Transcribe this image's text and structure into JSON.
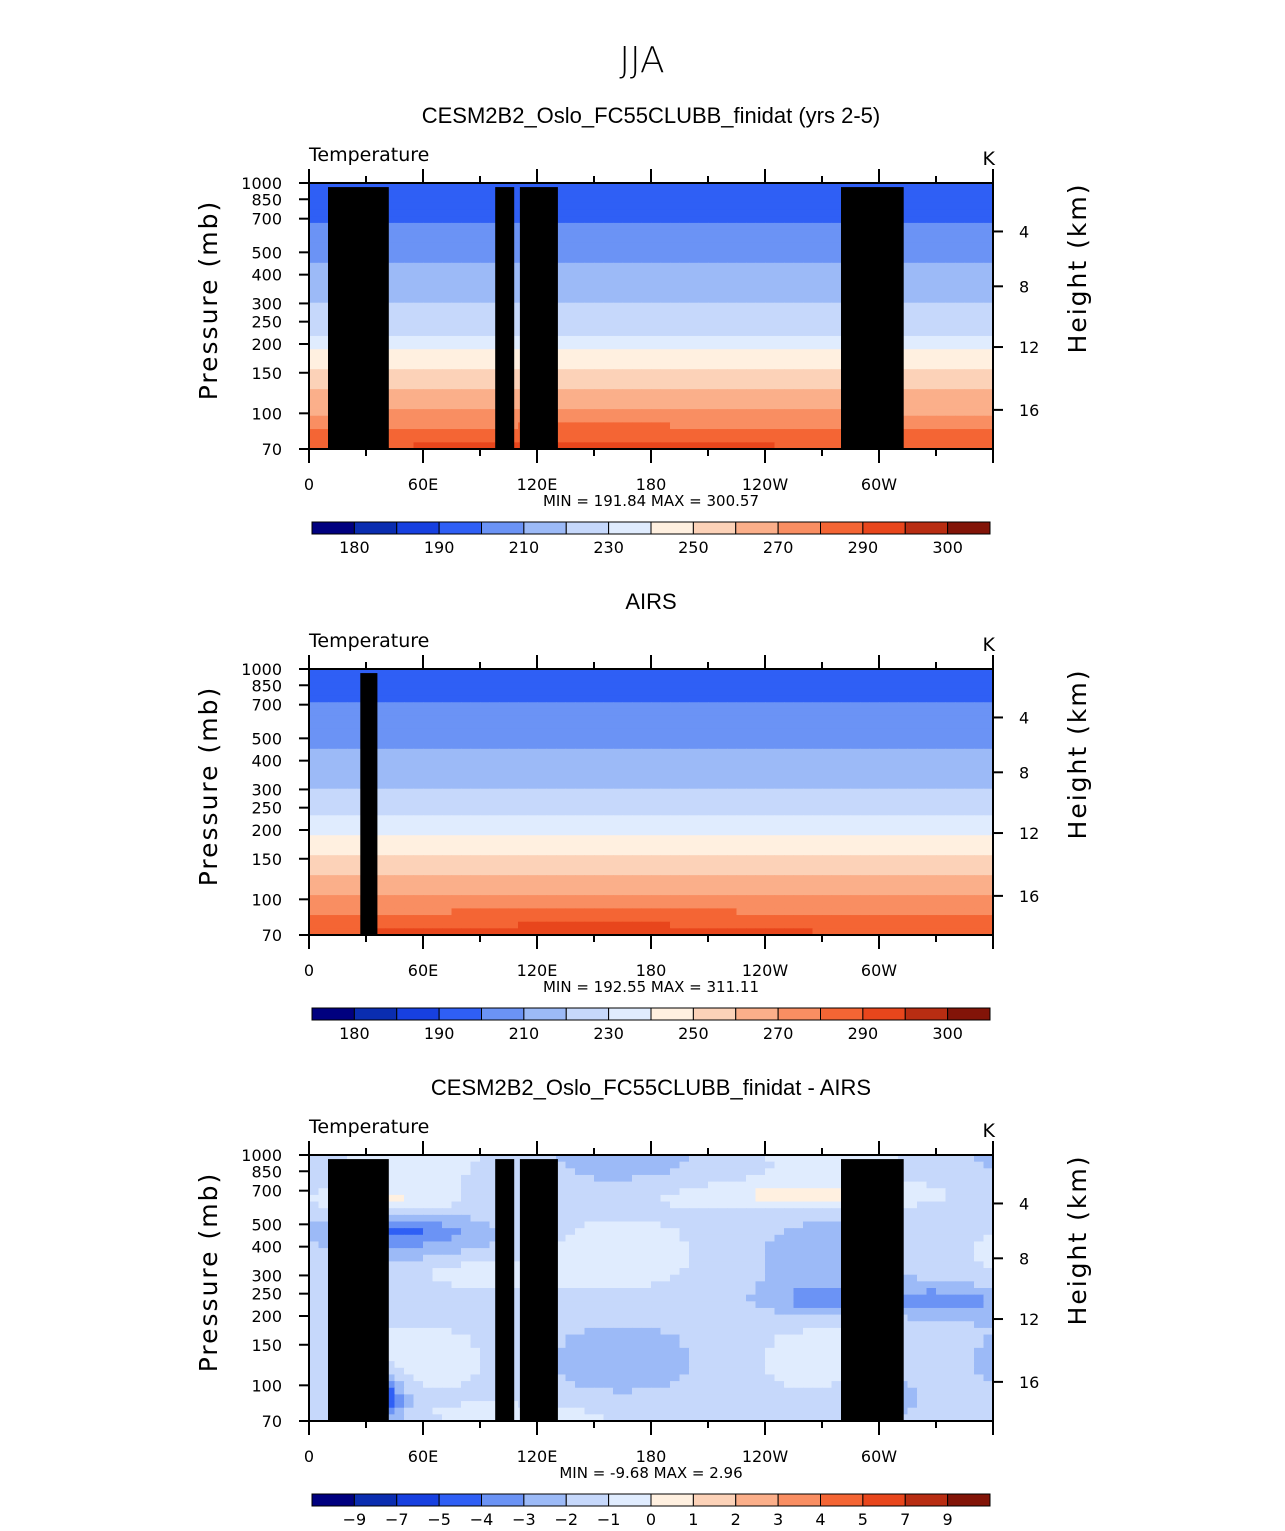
{
  "figure": {
    "season": "JJA",
    "lon_ticks": [
      "0",
      "60E",
      "120E",
      "180",
      "120W",
      "60W"
    ],
    "pressure_ticks": [
      "70",
      "100",
      "150",
      "200",
      "250",
      "300",
      "400",
      "500",
      "700",
      "850",
      "1000"
    ],
    "height_ticks": [
      "16",
      "12",
      "8",
      "4"
    ]
  },
  "chart_data": [
    {
      "type": "heatmap",
      "title": "CESM2B2_Oslo_FC55CLUBB_finidat (yrs 2-5)",
      "subtitle_left": "Temperature",
      "subtitle_right": "K",
      "xlabel": "",
      "ylabel_left": "Pressure (mb)",
      "ylabel_right": "Height (km)",
      "xlim": [
        0,
        360
      ],
      "ylim_pressure": [
        1000,
        70
      ],
      "stats": "MIN = 191.84   MAX = 300.57",
      "colorbar_levels": [
        180,
        185,
        190,
        200,
        210,
        220,
        230,
        240,
        250,
        260,
        270,
        280,
        290,
        295,
        300
      ],
      "colorbar_labels": [
        "180",
        "190",
        "210",
        "230",
        "250",
        "270",
        "290",
        "300"
      ],
      "colorbar_colors": [
        "#00007f",
        "#0a2db0",
        "#1740e0",
        "#2f5ff5",
        "#6b93f5",
        "#9cbaf7",
        "#c6d8fb",
        "#e0ecfe",
        "#fff0e0",
        "#fcd2b8",
        "#fbaf8a",
        "#f98e62",
        "#f46534",
        "#e8461c",
        "#b82d12",
        "#821408"
      ],
      "field": "model"
    },
    {
      "type": "heatmap",
      "title": "AIRS",
      "subtitle_left": "Temperature",
      "subtitle_right": "K",
      "xlabel": "",
      "ylabel_left": "Pressure (mb)",
      "ylabel_right": "Height (km)",
      "xlim": [
        0,
        360
      ],
      "ylim_pressure": [
        1000,
        70
      ],
      "stats": "MIN = 192.55   MAX = 311.11",
      "colorbar_levels": [
        180,
        185,
        190,
        200,
        210,
        220,
        230,
        240,
        250,
        260,
        270,
        280,
        290,
        295,
        300
      ],
      "colorbar_labels": [
        "180",
        "190",
        "210",
        "230",
        "250",
        "270",
        "290",
        "300"
      ],
      "colorbar_colors": [
        "#00007f",
        "#0a2db0",
        "#1740e0",
        "#2f5ff5",
        "#6b93f5",
        "#9cbaf7",
        "#c6d8fb",
        "#e0ecfe",
        "#fff0e0",
        "#fcd2b8",
        "#fbaf8a",
        "#f98e62",
        "#f46534",
        "#e8461c",
        "#b82d12",
        "#821408"
      ],
      "field": "obs"
    },
    {
      "type": "heatmap",
      "title": "CESM2B2_Oslo_FC55CLUBB_finidat - AIRS",
      "subtitle_left": "Temperature",
      "subtitle_right": "K",
      "xlabel": "",
      "ylabel_left": "Pressure (mb)",
      "ylabel_right": "Height (km)",
      "xlim": [
        0,
        360
      ],
      "ylim_pressure": [
        1000,
        70
      ],
      "stats": "MIN =    -9.68   MAX =     2.96",
      "colorbar_levels": [
        -9,
        -7,
        -5,
        -4,
        -3,
        -2,
        -1,
        0,
        1,
        2,
        3,
        4,
        5,
        7,
        9
      ],
      "colorbar_labels": [
        "−9",
        "−7",
        "−5",
        "−4",
        "−3",
        "−2",
        "−1",
        "0",
        "1",
        "2",
        "3",
        "4",
        "5",
        "7",
        "9"
      ],
      "colorbar_colors": [
        "#00007f",
        "#0a2db0",
        "#1740e0",
        "#2f5ff5",
        "#6b93f5",
        "#9cbaf7",
        "#c6d8fb",
        "#e0ecfe",
        "#fff0e0",
        "#fcd2b8",
        "#fbaf8a",
        "#f98e62",
        "#f46534",
        "#e8461c",
        "#b82d12",
        "#821408"
      ],
      "field": "diff"
    }
  ]
}
